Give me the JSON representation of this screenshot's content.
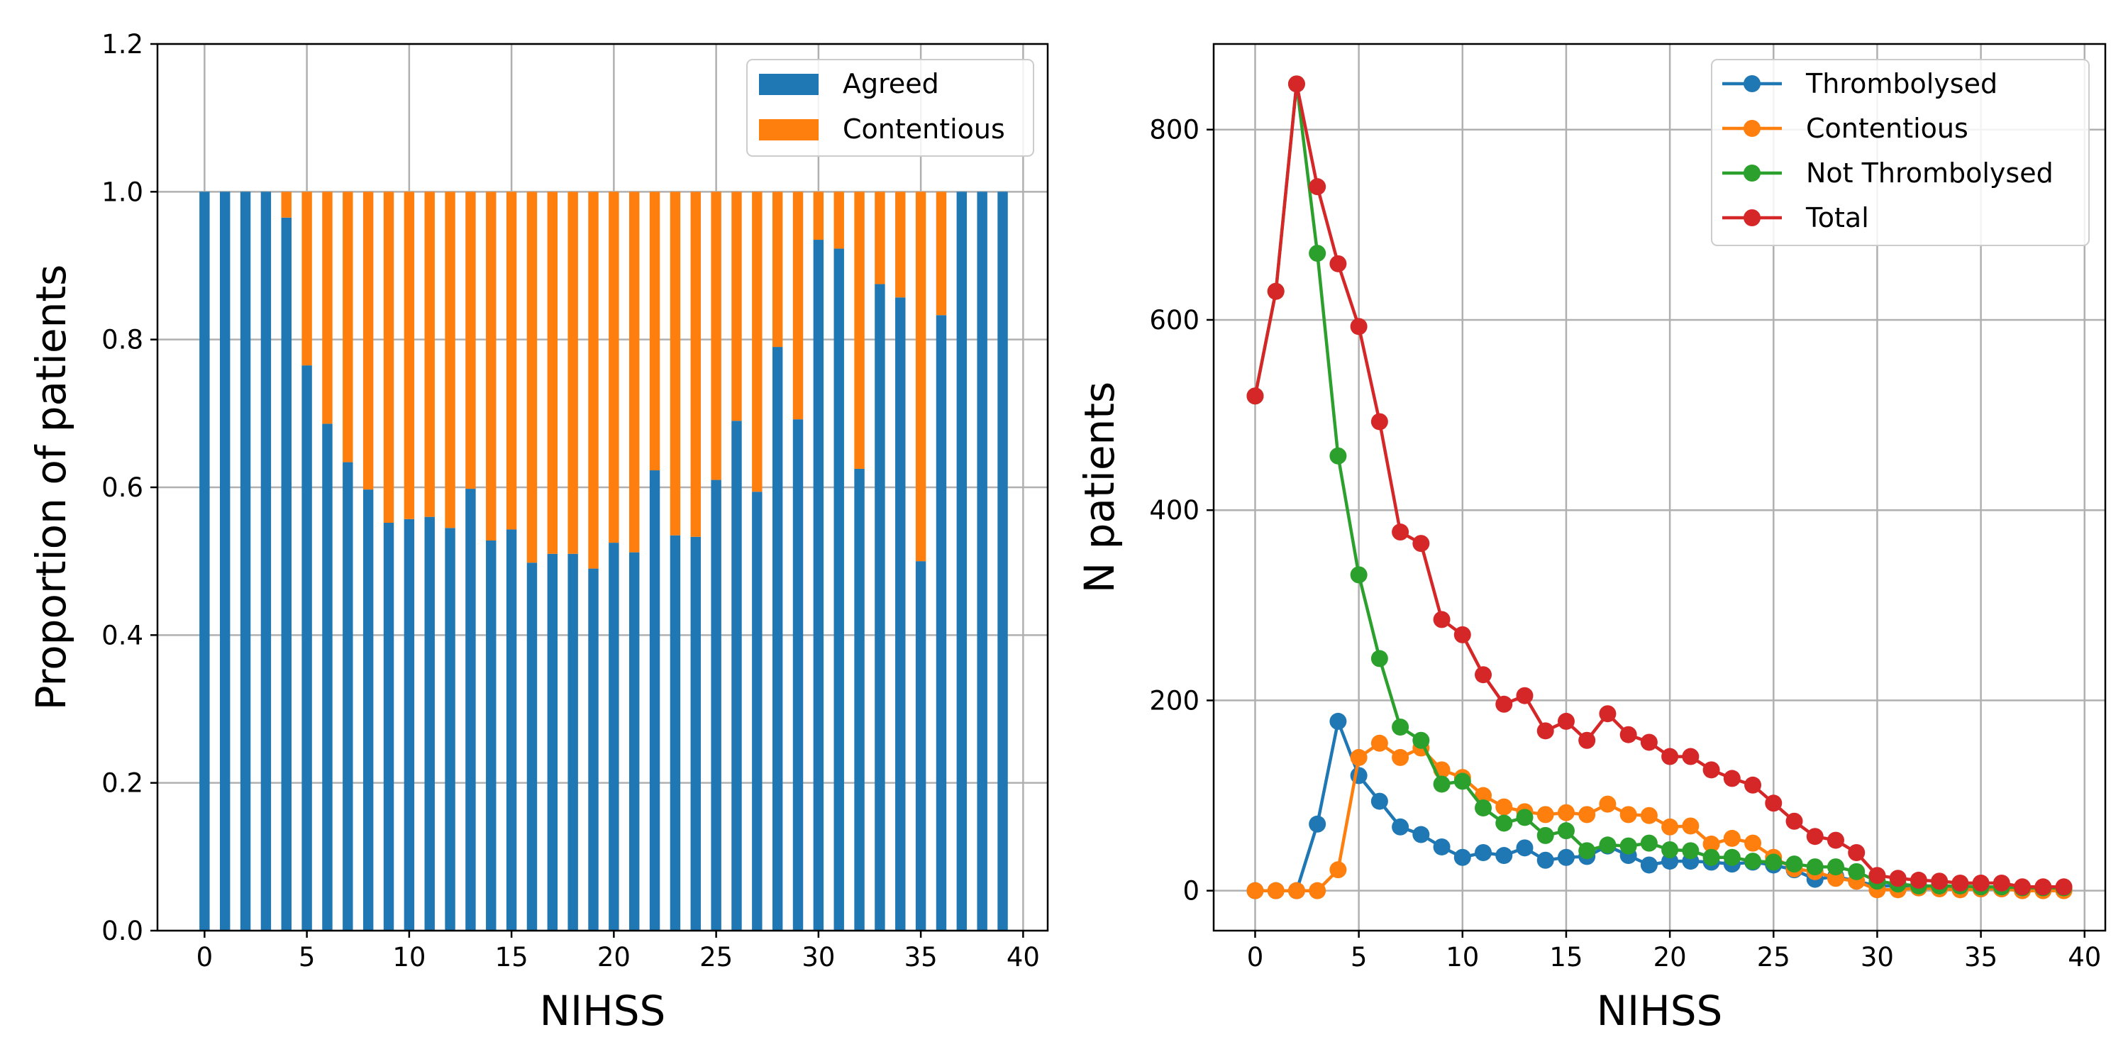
{
  "chart_data": [
    {
      "type": "bar",
      "stacked": true,
      "xlabel": "NIHSS",
      "ylabel": "Proportion of patients",
      "xlim": [
        -2.3,
        41.2
      ],
      "ylim": [
        0,
        1.2
      ],
      "xticks": [
        0,
        5,
        10,
        15,
        20,
        25,
        30,
        35,
        40
      ],
      "yticks": [
        0.0,
        0.2,
        0.4,
        0.6,
        0.8,
        1.0,
        1.2
      ],
      "ytick_labels": [
        "0.0",
        "0.2",
        "0.4",
        "0.6",
        "0.8",
        "1.0",
        "1.2"
      ],
      "grid": true,
      "legend_position": "top-right",
      "categories": [
        0,
        1,
        2,
        3,
        4,
        5,
        6,
        7,
        8,
        9,
        10,
        11,
        12,
        13,
        14,
        15,
        16,
        17,
        18,
        19,
        20,
        21,
        22,
        23,
        24,
        25,
        26,
        27,
        28,
        29,
        30,
        31,
        32,
        33,
        34,
        35,
        36,
        37,
        38,
        39
      ],
      "series": [
        {
          "name": "Agreed",
          "color": "#1f77b4",
          "values": [
            1.0,
            1.0,
            1.0,
            1.0,
            0.965,
            0.765,
            0.686,
            0.634,
            0.597,
            0.552,
            0.557,
            0.56,
            0.545,
            0.598,
            0.528,
            0.543,
            0.498,
            0.51,
            0.51,
            0.49,
            0.525,
            0.512,
            0.623,
            0.535,
            0.533,
            0.61,
            0.69,
            0.594,
            0.79,
            0.692,
            0.935,
            0.923,
            0.625,
            0.875,
            0.857,
            0.5,
            0.833,
            1.0,
            1.0,
            1.0
          ]
        },
        {
          "name": "Contentious",
          "color": "#ff7f0e",
          "values": [
            0.0,
            0.0,
            0.0,
            0.0,
            0.035,
            0.235,
            0.314,
            0.366,
            0.403,
            0.448,
            0.443,
            0.44,
            0.455,
            0.402,
            0.472,
            0.457,
            0.502,
            0.49,
            0.49,
            0.51,
            0.475,
            0.488,
            0.377,
            0.465,
            0.467,
            0.39,
            0.31,
            0.406,
            0.21,
            0.308,
            0.065,
            0.077,
            0.375,
            0.125,
            0.143,
            0.5,
            0.167,
            0.0,
            0.0,
            0.0
          ]
        }
      ]
    },
    {
      "type": "line",
      "xlabel": "NIHSS",
      "ylabel": "N patients",
      "xlim": [
        -2,
        41
      ],
      "ylim": [
        -42,
        890
      ],
      "xticks": [
        0,
        5,
        10,
        15,
        20,
        25,
        30,
        35,
        40
      ],
      "yticks": [
        0,
        200,
        400,
        600,
        800
      ],
      "grid": true,
      "legend_position": "top-right",
      "x": [
        0,
        1,
        2,
        3,
        4,
        5,
        6,
        7,
        8,
        9,
        10,
        11,
        12,
        13,
        14,
        15,
        16,
        17,
        18,
        19,
        20,
        21,
        22,
        23,
        24,
        25,
        26,
        27,
        28,
        29,
        30,
        31,
        32,
        33,
        34,
        35,
        36,
        37,
        38,
        39
      ],
      "series": [
        {
          "name": "Thrombolysed",
          "color": "#1f77b4",
          "values": [
            0,
            0,
            0,
            70,
            178,
            121,
            94,
            67,
            59,
            46,
            35,
            40,
            37,
            45,
            32,
            35,
            36,
            47,
            37,
            27,
            31,
            31,
            30,
            28,
            30,
            27,
            22,
            12,
            15,
            10,
            5,
            5,
            3,
            3,
            2,
            2,
            2,
            1,
            1,
            1
          ]
        },
        {
          "name": "Contentious",
          "color": "#ff7f0e",
          "values": [
            0,
            0,
            0,
            0,
            22,
            140,
            155,
            140,
            150,
            127,
            119,
            100,
            88,
            83,
            80,
            82,
            80,
            91,
            80,
            79,
            67,
            68,
            49,
            55,
            50,
            35,
            23,
            20,
            13,
            10,
            1,
            1,
            3,
            2,
            1,
            2,
            2,
            0,
            0,
            0
          ]
        },
        {
          "name": "Not Thrombolysed",
          "color": "#2ca02c",
          "values": [
            520,
            630,
            848,
            670,
            457,
            332,
            244,
            172,
            158,
            112,
            115,
            87,
            71,
            77,
            58,
            63,
            42,
            48,
            47,
            50,
            43,
            42,
            35,
            35,
            31,
            30,
            28,
            25,
            25,
            20,
            10,
            7,
            5,
            5,
            5,
            4,
            4,
            3,
            3,
            3
          ]
        },
        {
          "name": "Total",
          "color": "#d62728",
          "values": [
            520,
            630,
            848,
            740,
            659,
            593,
            493,
            377,
            365,
            285,
            269,
            227,
            196,
            205,
            168,
            178,
            158,
            186,
            164,
            156,
            141,
            141,
            127,
            118,
            111,
            92,
            73,
            57,
            53,
            40,
            16,
            13,
            11,
            10,
            8,
            8,
            8,
            4,
            4,
            4
          ]
        }
      ]
    }
  ]
}
